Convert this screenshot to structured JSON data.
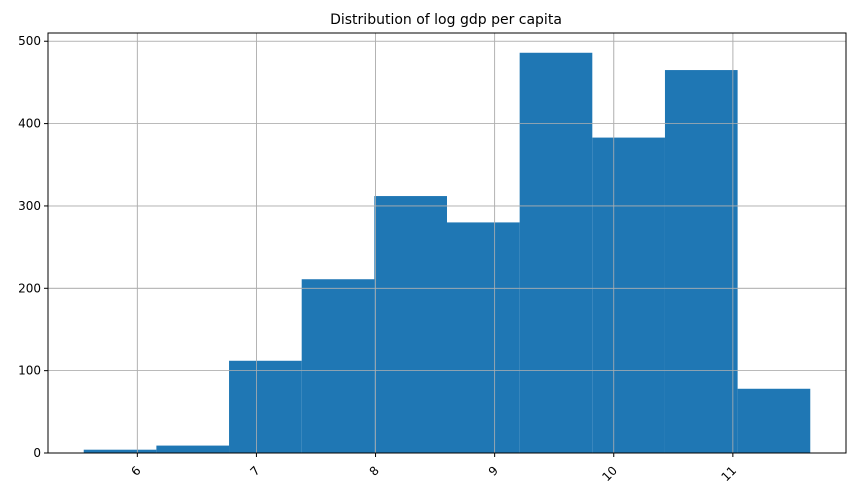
{
  "chart_data": {
    "type": "bar",
    "title": "Distribution of log gdp per capita",
    "xlabel": "",
    "ylabel": "",
    "bins": [
      {
        "x0": 5.55,
        "x1": 6.16,
        "count": 4
      },
      {
        "x0": 6.16,
        "x1": 6.77,
        "count": 9
      },
      {
        "x0": 6.77,
        "x1": 7.38,
        "count": 112
      },
      {
        "x0": 7.38,
        "x1": 7.99,
        "count": 211
      },
      {
        "x0": 7.99,
        "x1": 8.6,
        "count": 312
      },
      {
        "x0": 8.6,
        "x1": 9.21,
        "count": 280
      },
      {
        "x0": 9.21,
        "x1": 9.82,
        "count": 486
      },
      {
        "x0": 9.82,
        "x1": 10.43,
        "count": 383
      },
      {
        "x0": 10.43,
        "x1": 11.04,
        "count": 465
      },
      {
        "x0": 11.04,
        "x1": 11.65,
        "count": 78
      }
    ],
    "xlim": [
      5.25,
      11.95
    ],
    "ylim": [
      0,
      510
    ],
    "x_ticks": [
      6,
      7,
      8,
      9,
      10,
      11
    ],
    "y_ticks": [
      0,
      100,
      200,
      300,
      400,
      500
    ],
    "x_tick_labels": [
      "6",
      "7",
      "8",
      "9",
      "10",
      "11"
    ],
    "y_tick_labels": [
      "0",
      "100",
      "200",
      "300",
      "400",
      "500"
    ],
    "x_tick_rotation": 45,
    "grid": true,
    "legend": "none",
    "colors": {
      "bar": "#1f77b4",
      "grid": "#b0b0b0",
      "axes": "#000000",
      "background": "#ffffff"
    }
  }
}
